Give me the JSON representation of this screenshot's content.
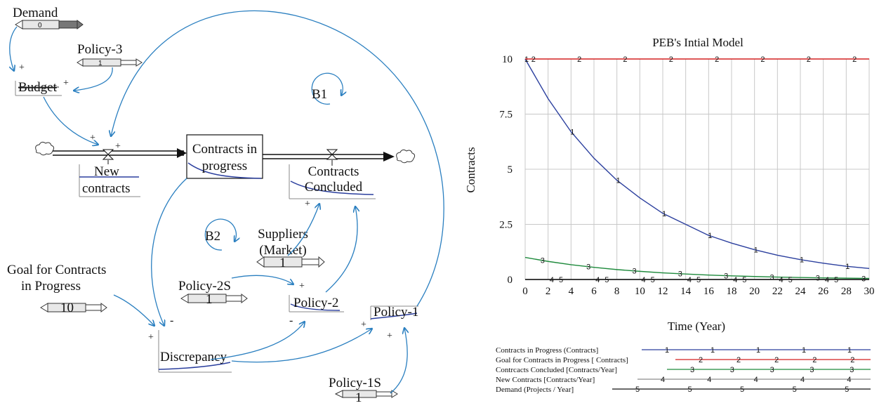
{
  "diagram": {
    "demand": {
      "label": "Demand",
      "slider_value": "0"
    },
    "policy3": {
      "label": "Policy-3",
      "slider_value": "1"
    },
    "budget": {
      "label": "Budget"
    },
    "new_contracts": {
      "label_line1": "New",
      "label_line2": "contracts"
    },
    "contracts_in_progress": {
      "label_line1": "Contracts in",
      "label_line2": "progress"
    },
    "contracts_concluded": {
      "label_line1": "Contracts",
      "label_line2": "Concluded"
    },
    "loop_b1": "B1",
    "loop_b2": "B2",
    "suppliers": {
      "label_line1": "Suppliers",
      "label_line2": "(Market)",
      "slider_value": "1"
    },
    "goal": {
      "label_line1": "Goal for Contracts",
      "label_line2": "in Progress",
      "slider_value": "10"
    },
    "policy2s": {
      "label": "Policy-2S",
      "slider_value": "1"
    },
    "policy2": {
      "label": "Policy-2"
    },
    "policy1": {
      "label": "Policy-1"
    },
    "policy1s": {
      "label": "Policy-1S",
      "slider_value": "1"
    },
    "discrepancy": {
      "label": "Discrepancy"
    },
    "plus": "+",
    "minus": "-"
  },
  "chart_data": {
    "type": "line",
    "title": "PEB's Intial Model",
    "xlabel": "Time (Year)",
    "ylabel": "Contracts",
    "xlim": [
      0,
      30
    ],
    "ylim": [
      0,
      10
    ],
    "x_ticks": [
      "0",
      "2",
      "4",
      "6",
      "8",
      "10",
      "12",
      "14",
      "16",
      "18",
      "20",
      "22",
      "24",
      "26",
      "28",
      "30"
    ],
    "y_ticks": [
      "0",
      "2.5",
      "5",
      "7.5",
      "10"
    ],
    "grid": true,
    "series": [
      {
        "name": "Contracts in Progress (Contracts]",
        "marker": "1",
        "color": "#2b3f9e",
        "x": [
          0,
          2,
          4,
          6,
          8,
          10,
          12,
          14,
          16,
          18,
          20,
          22,
          24,
          26,
          28,
          30
        ],
        "y": [
          10,
          8.2,
          6.7,
          5.5,
          4.5,
          3.7,
          3.0,
          2.5,
          2.0,
          1.65,
          1.35,
          1.1,
          0.9,
          0.74,
          0.6,
          0.5
        ]
      },
      {
        "name": "Goal for Contracts in Progress [ Contracts]",
        "marker": "2",
        "color": "#d42020",
        "x": [
          0,
          30
        ],
        "y": [
          10,
          10
        ]
      },
      {
        "name": "Contrcacts Concluded [Contracts/Year]",
        "marker": "3",
        "color": "#1e8a3c",
        "x": [
          0,
          2,
          4,
          6,
          8,
          10,
          12,
          14,
          16,
          18,
          20,
          22,
          24,
          26,
          28,
          30
        ],
        "y": [
          1.0,
          0.82,
          0.67,
          0.55,
          0.45,
          0.37,
          0.3,
          0.25,
          0.2,
          0.165,
          0.135,
          0.11,
          0.09,
          0.074,
          0.06,
          0.05
        ]
      },
      {
        "name": "New Contracts [Contracts/Year]",
        "marker": "4",
        "color": "#8c8c8c",
        "x": [
          0,
          30
        ],
        "y": [
          0,
          0
        ]
      },
      {
        "name": "Demand (Projects / Year]",
        "marker": "5",
        "color": "#111111",
        "x": [
          0,
          30
        ],
        "y": [
          0,
          0
        ]
      }
    ]
  }
}
